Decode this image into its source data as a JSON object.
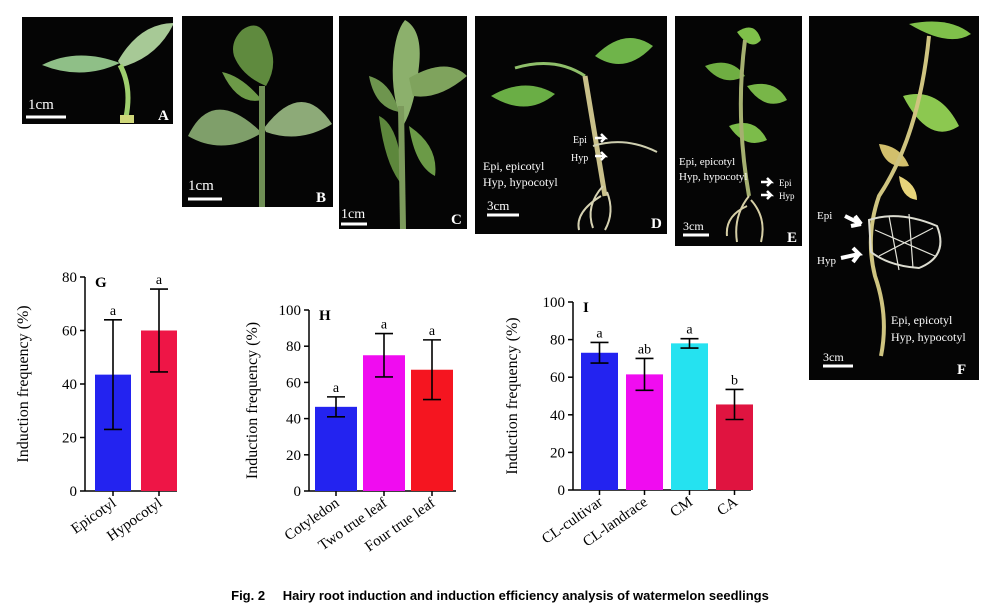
{
  "figure": {
    "caption_number": "Fig. 2",
    "caption_text": "Hairy root induction and induction efficiency analysis of watermelon seedlings",
    "photos": {
      "A": {
        "letter": "A",
        "scale": "1cm"
      },
      "B": {
        "letter": "B",
        "scale": "1cm"
      },
      "C": {
        "letter": "C",
        "scale": "1cm"
      },
      "D": {
        "letter": "D",
        "scale": "3cm",
        "legend1": "Epi, epicotyl",
        "legend2": "Hyp, hypocotyl",
        "arrow1": "Epi",
        "arrow2": "Hyp"
      },
      "E": {
        "letter": "E",
        "scale": "3cm",
        "legend1": "Epi, epicotyl",
        "legend2": "Hyp, hypocotyl",
        "arrow1": "Epi",
        "arrow2": "Hyp"
      },
      "F": {
        "letter": "F",
        "scale": "3cm",
        "legend1": "Epi, epicotyl",
        "legend2": "Hyp, hypocotyl",
        "arrow1": "Epi",
        "arrow2": "Hyp"
      }
    }
  },
  "chart_data": [
    {
      "panel": "G",
      "type": "bar",
      "ylabel": "Induction frequency (%)",
      "ylim": [
        0,
        80
      ],
      "yticks": [
        0,
        20,
        40,
        60,
        80
      ],
      "categories": [
        "Epicotyl",
        "Hypocotyl"
      ],
      "values": [
        43.5,
        60
      ],
      "errors": [
        20.5,
        15.5
      ],
      "letters": [
        "a",
        "a"
      ],
      "colors": [
        "#2323f0",
        "#ee1546"
      ]
    },
    {
      "panel": "H",
      "type": "bar",
      "ylabel": "Induction frequency (%)",
      "ylim": [
        0,
        100
      ],
      "yticks": [
        0,
        20,
        40,
        60,
        80,
        100
      ],
      "categories": [
        "Cotyledon",
        "Two true leaf",
        "Four true leaf"
      ],
      "values": [
        46.5,
        75,
        67
      ],
      "errors": [
        5.5,
        12,
        16.5
      ],
      "letters": [
        "a",
        "a",
        "a"
      ],
      "colors": [
        "#2323f0",
        "#f00cf0",
        "#f51520"
      ]
    },
    {
      "panel": "I",
      "type": "bar",
      "ylabel": "Induction frequency (%)",
      "ylim": [
        0,
        100
      ],
      "yticks": [
        0,
        20,
        40,
        60,
        80,
        100
      ],
      "categories": [
        "CL-cultivar",
        "CL-landrace",
        "CM",
        "CA"
      ],
      "values": [
        73,
        61.5,
        78,
        45.5
      ],
      "errors": [
        5.5,
        8.5,
        2.5,
        8
      ],
      "letters": [
        "a",
        "ab",
        "a",
        "b"
      ],
      "colors": [
        "#2323f0",
        "#f00cf0",
        "#25e2f0",
        "#e01440"
      ]
    }
  ]
}
